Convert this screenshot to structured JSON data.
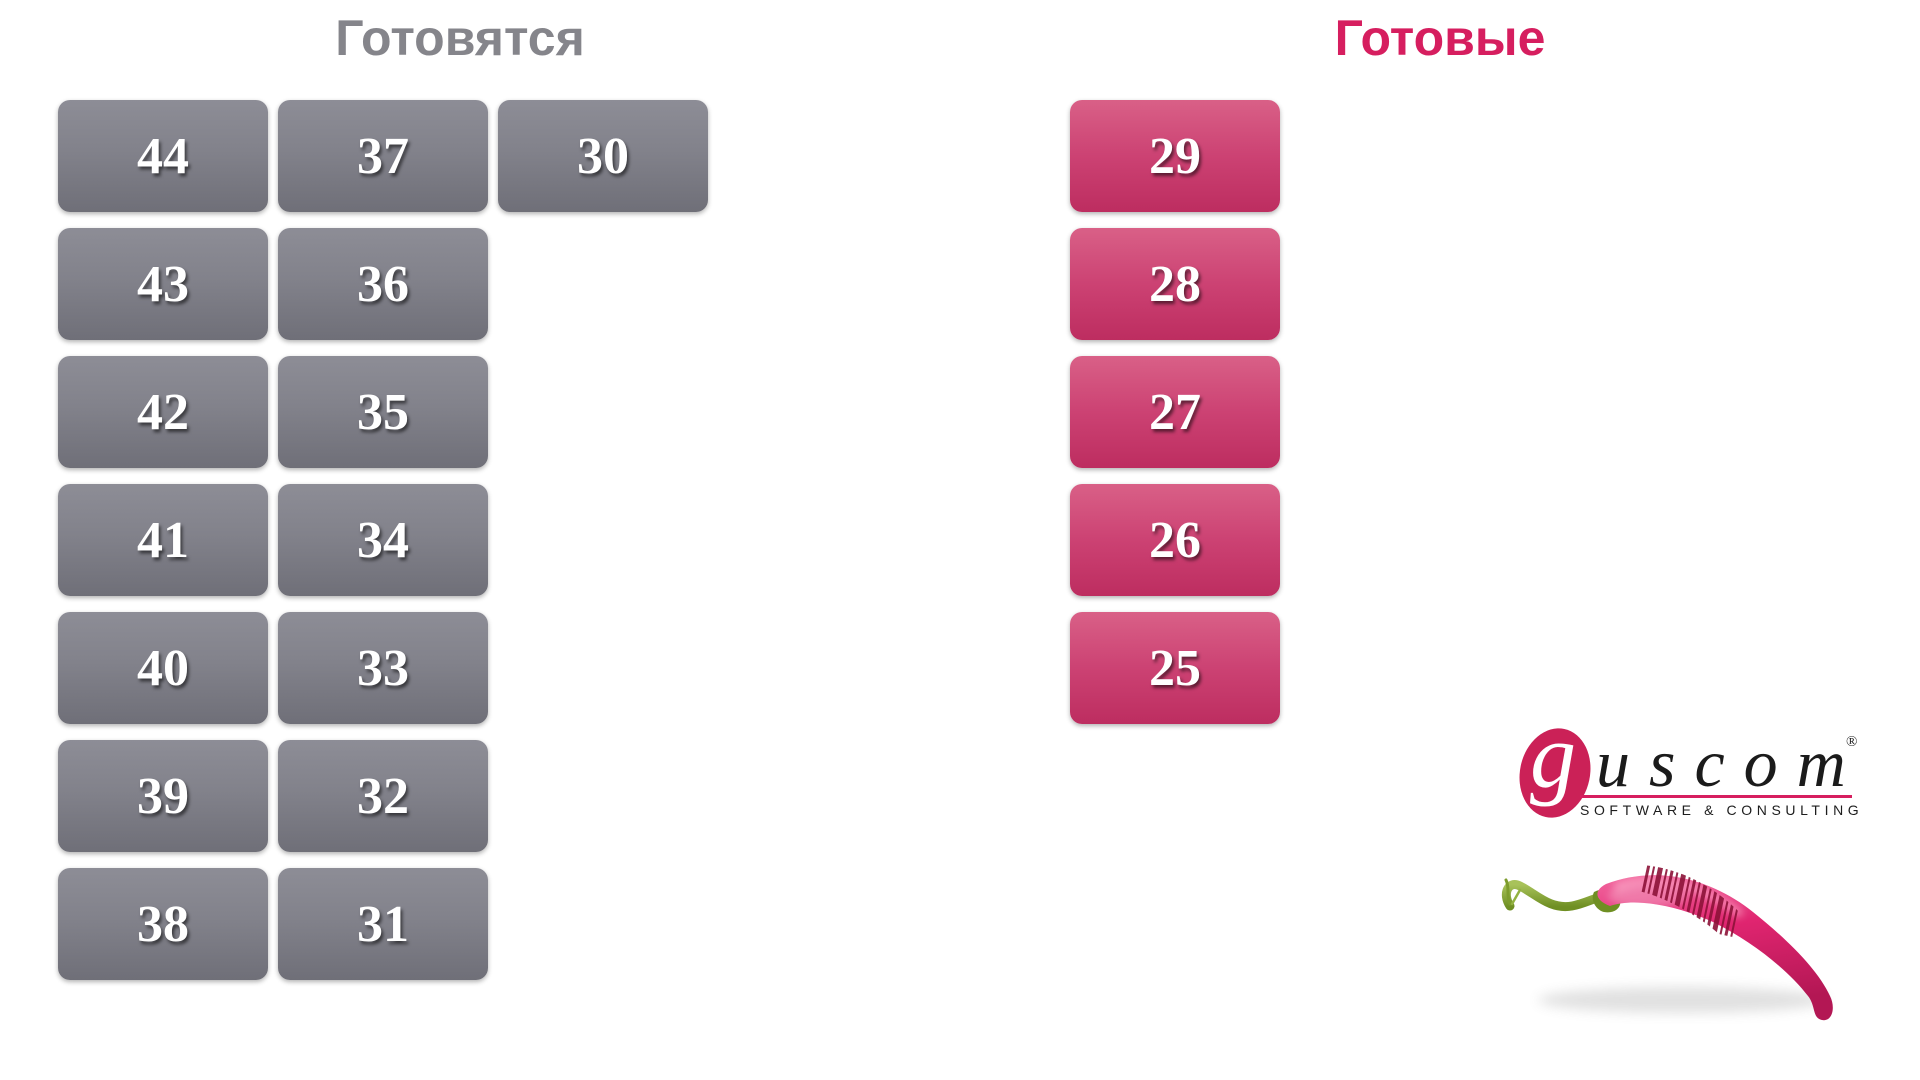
{
  "colors": {
    "preparing_title": "#85858b",
    "ready_title": "#d61e5f",
    "tile_gray_top": "#8d8d96",
    "tile_gray_bottom": "#6f6f78",
    "tile_pink_top": "#d96087",
    "tile_pink_bottom": "#bd2d60",
    "logo_pink": "#cb2157",
    "pepper_pink": "#e02570",
    "stem_green": "#84ab35"
  },
  "preparing": {
    "title": "Готовятся",
    "orders": [
      "44",
      "43",
      "42",
      "41",
      "40",
      "39",
      "38",
      "37",
      "36",
      "35",
      "34",
      "33",
      "32",
      "31",
      "30"
    ]
  },
  "ready": {
    "title": "Готовые",
    "orders": [
      "29",
      "28",
      "27",
      "26",
      "25"
    ]
  },
  "logo": {
    "brand_initial": "g",
    "brand_rest": "uscom",
    "registered": "®",
    "tagline": "SOFTWARE & CONSULTING"
  }
}
